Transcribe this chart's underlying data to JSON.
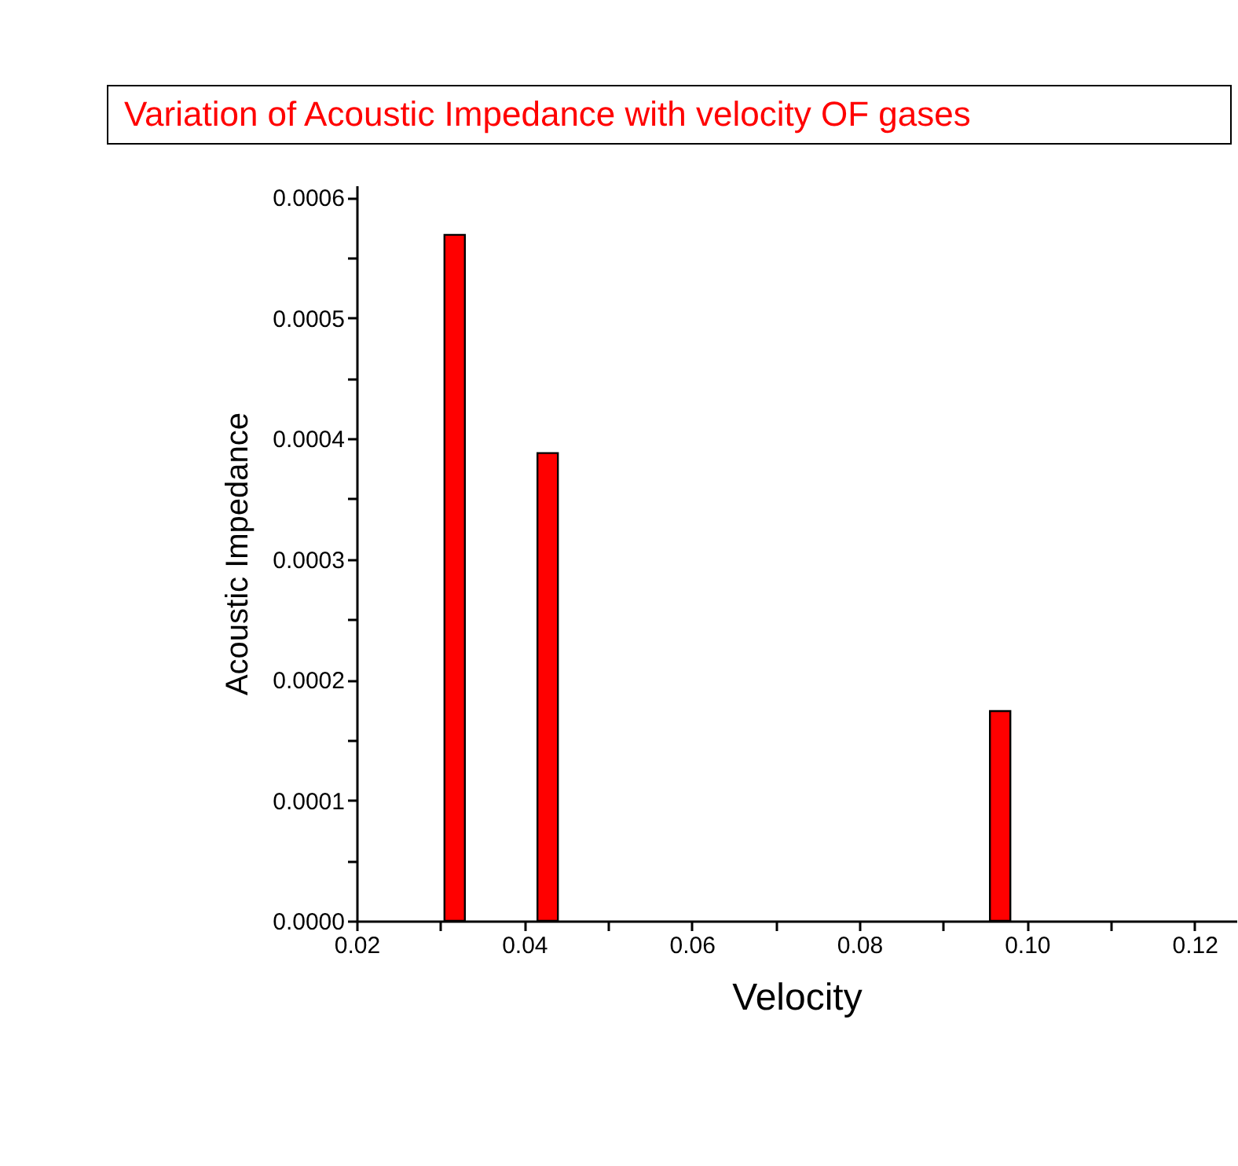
{
  "chart_data": {
    "type": "bar",
    "title": "Variation of Acoustic Impedance with velocity OF gases",
    "xlabel": "Velocity",
    "ylabel": "Acoustic Impedance",
    "x": [
      0.0317,
      0.0428,
      0.0968
    ],
    "values": [
      0.000569,
      0.000388,
      0.000174
    ],
    "color": "#ff0000",
    "xlim": [
      0.02,
      0.125
    ],
    "xticks": [
      0.02,
      {
        "value": 0.03,
        "label": null
      },
      0.04,
      {
        "value": 0.05,
        "label": null
      },
      0.06,
      {
        "value": 0.07,
        "label": null
      },
      0.08,
      {
        "value": 0.09,
        "label": null
      },
      {
        "value": 0.1,
        "label": "0.10"
      },
      {
        "value": 0.11,
        "label": null
      },
      {
        "value": 0.12,
        "label": "0.12"
      }
    ],
    "ylim": [
      0,
      0.00061
    ],
    "yticks": [
      {
        "value": 0,
        "label": "0.0000"
      },
      {
        "value": 5e-05,
        "label": null
      },
      0.0001,
      {
        "value": 0.00015,
        "label": null
      },
      0.0002,
      {
        "value": 0.00025,
        "label": null
      },
      0.0003,
      {
        "value": 0.00035,
        "label": null
      },
      0.0004,
      {
        "value": 0.00045,
        "label": null
      },
      0.0005,
      {
        "value": 0.00055,
        "label": null
      },
      0.0006
    ],
    "grid": false
  }
}
